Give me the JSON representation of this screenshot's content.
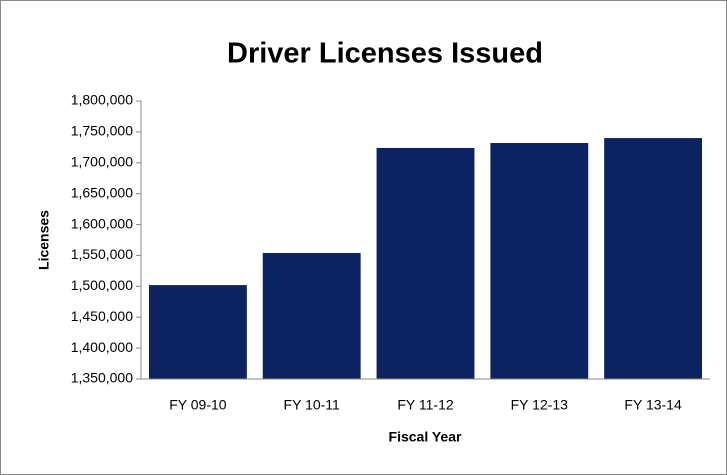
{
  "chart_data": {
    "type": "bar",
    "title": "Driver Licenses Issued",
    "x_label": "Fiscal Year",
    "y_label": "Licenses",
    "categories": [
      "FY 09-10",
      "FY 10-11",
      "FY 11-12",
      "FY 12-13",
      "FY 13-14"
    ],
    "values": [
      1502000,
      1554000,
      1724000,
      1732000,
      1740000
    ],
    "color": "#0d2260",
    "ylim": [
      1350000,
      1800000
    ],
    "yticks": [
      {
        "value": 1350000,
        "label": "1,350,000"
      },
      {
        "value": 1400000,
        "label": "1,400,000"
      },
      {
        "value": 1450000,
        "label": "1,450,000"
      },
      {
        "value": 1500000,
        "label": "1,500,000"
      },
      {
        "value": 1550000,
        "label": "1,550,000"
      },
      {
        "value": 1600000,
        "label": "1,600,000"
      },
      {
        "value": 1650000,
        "label": "1,650,000"
      },
      {
        "value": 1700000,
        "label": "1,700,000"
      },
      {
        "value": 1750000,
        "label": "1,750,000"
      },
      {
        "value": 1800000,
        "label": "1,800,000"
      }
    ],
    "grid": false
  }
}
